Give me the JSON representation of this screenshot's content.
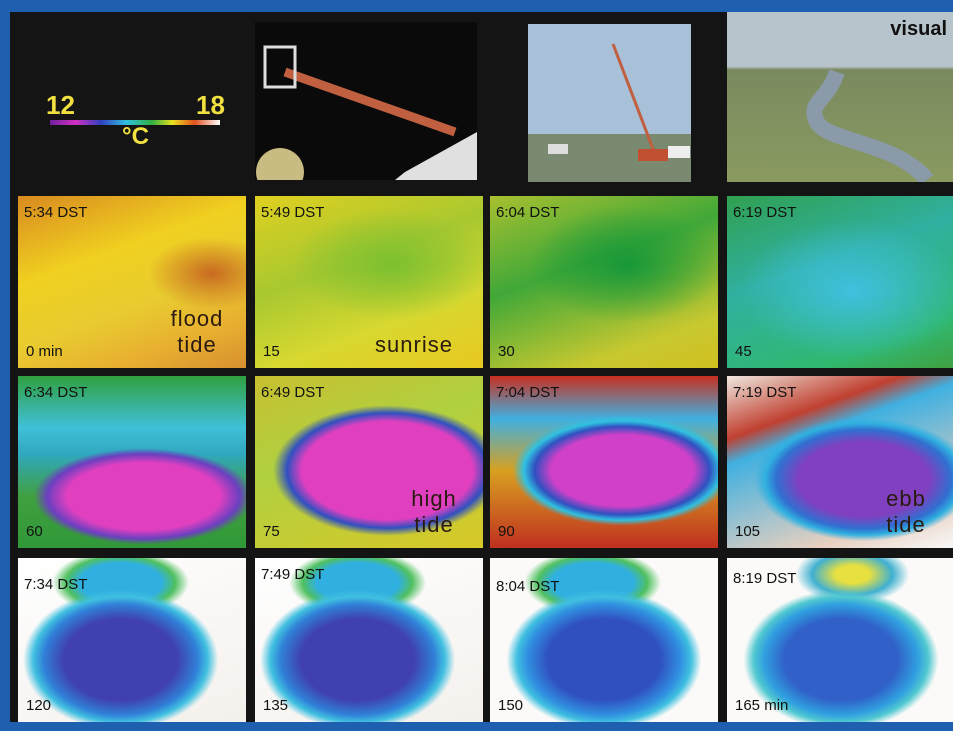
{
  "legend": {
    "min_label": "12",
    "max_label": "18",
    "unit": "°C"
  },
  "photo_label": "visual",
  "panels": [
    {
      "time": "5:34 DST",
      "minutes": "0 min",
      "note": "flood tide"
    },
    {
      "time": "5:49 DST",
      "minutes": "15",
      "note": "sunrise"
    },
    {
      "time": "6:04 DST",
      "minutes": "30"
    },
    {
      "time": "6:19 DST",
      "minutes": "45"
    },
    {
      "time": "6:34 DST",
      "minutes": "60"
    },
    {
      "time": "6:49 DST",
      "minutes": "75",
      "note": "high tide"
    },
    {
      "time": "7:04 DST",
      "minutes": "90"
    },
    {
      "time": "7:19 DST",
      "minutes": "105",
      "note": "ebb tide"
    },
    {
      "time": "7:34 DST",
      "minutes": "120"
    },
    {
      "time": "7:49 DST",
      "minutes": "135"
    },
    {
      "time": "8:04 DST",
      "minutes": "150"
    },
    {
      "time": "8:19 DST",
      "minutes": "165 min"
    }
  ]
}
